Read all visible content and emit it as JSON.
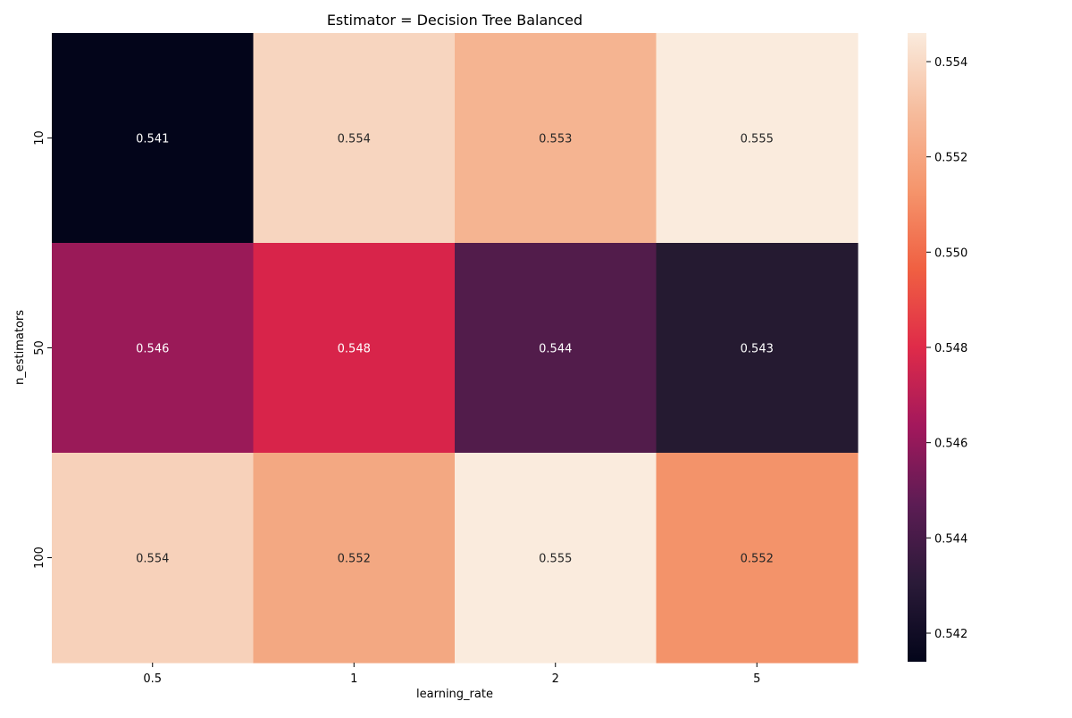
{
  "chart_data": {
    "type": "heatmap",
    "title": "Estimator = Decision Tree Balanced",
    "xlabel": "learning_rate",
    "ylabel": "n_estimators",
    "x_categories": [
      "0.5",
      "1",
      "2",
      "5"
    ],
    "y_categories": [
      "10",
      "50",
      "100"
    ],
    "values": [
      [
        0.541,
        0.554,
        0.553,
        0.555
      ],
      [
        0.546,
        0.548,
        0.544,
        0.543
      ],
      [
        0.554,
        0.552,
        0.555,
        0.552
      ]
    ],
    "cell_labels": [
      [
        "0.541",
        "0.554",
        "0.553",
        "0.555"
      ],
      [
        "0.546",
        "0.548",
        "0.544",
        "0.543"
      ],
      [
        "0.554",
        "0.552",
        "0.555",
        "0.552"
      ]
    ],
    "colormap": "rocket",
    "vmin": 0.5414,
    "vmax": 0.5546,
    "colorbar_ticks": [
      "0.542",
      "0.544",
      "0.546",
      "0.548",
      "0.550",
      "0.552",
      "0.554"
    ],
    "cell_colors": [
      [
        "#03051a",
        "#f7d5bf",
        "#f5b491",
        "#faebdd"
      ],
      [
        "#9a1a58",
        "#d8244a",
        "#521c4b",
        "#251a31"
      ],
      [
        "#f7d1ba",
        "#f3a882",
        "#faebdd",
        "#f3936a"
      ]
    ],
    "colorbar_stops": [
      "#03051a",
      "#2a1a38",
      "#5c1c54",
      "#a3185c",
      "#df2b49",
      "#f06042",
      "#f5956c",
      "#f6bc9d",
      "#faebdd"
    ]
  }
}
